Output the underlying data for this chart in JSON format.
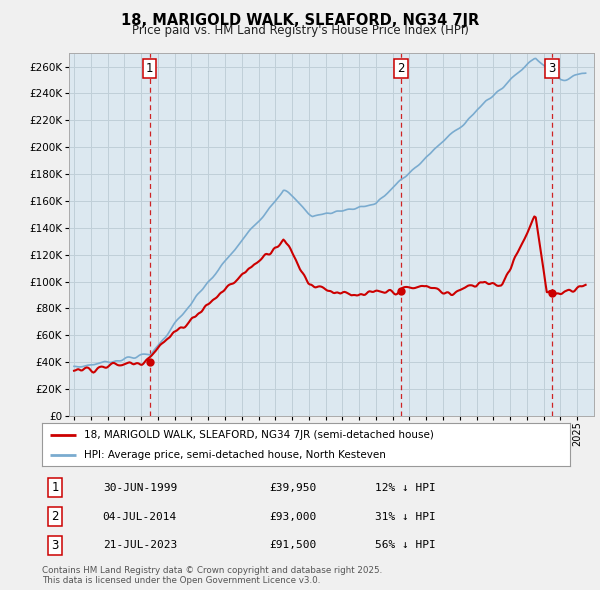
{
  "title": "18, MARIGOLD WALK, SLEAFORD, NG34 7JR",
  "subtitle": "Price paid vs. HM Land Registry's House Price Index (HPI)",
  "legend_line1": "18, MARIGOLD WALK, SLEAFORD, NG34 7JR (semi-detached house)",
  "legend_line2": "HPI: Average price, semi-detached house, North Kesteven",
  "transactions": [
    {
      "num": 1,
      "date": "30-JUN-1999",
      "price": 39950,
      "pct": "12% ↓ HPI",
      "year": 1999.5
    },
    {
      "num": 2,
      "date": "04-JUL-2014",
      "price": 93000,
      "pct": "31% ↓ HPI",
      "year": 2014.5
    },
    {
      "num": 3,
      "date": "21-JUL-2023",
      "price": 91500,
      "pct": "56% ↓ HPI",
      "year": 2023.5
    }
  ],
  "copyright": "Contains HM Land Registry data © Crown copyright and database right 2025.\nThis data is licensed under the Open Government Licence v3.0.",
  "red_color": "#cc0000",
  "blue_color": "#7aabcf",
  "vline_color": "#cc0000",
  "bg_color": "#f0f0f0",
  "plot_bg": "#dce8f0",
  "ylim": [
    0,
    270000
  ],
  "ytick_step": 20000,
  "grid_color": "#c0cfd8"
}
